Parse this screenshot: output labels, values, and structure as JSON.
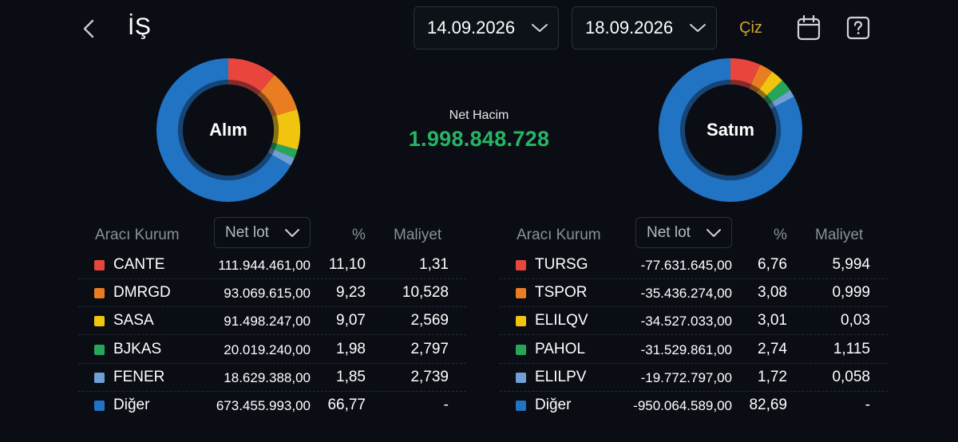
{
  "header": {
    "title": "İŞ",
    "date_start": "14.09.2026",
    "date_end": "18.09.2026",
    "draw_label": "Çiz"
  },
  "summary": {
    "net_volume_label": "Net Hacim",
    "net_volume_value": "1.998.848.728",
    "buy_label": "Alım",
    "sell_label": "Satım"
  },
  "colors": {
    "red": "#e8453c",
    "orange": "#ea7d22",
    "yellow": "#f1c40f",
    "green": "#27a65a",
    "lightblue": "#6f9fd3",
    "blue": "#2173c4",
    "accent_green": "#27b565",
    "accent_gold": "#d4a62a"
  },
  "columns": {
    "broker": "Aracı Kurum",
    "lot_select": "Net lot",
    "pct": "%",
    "cost": "Maliyet"
  },
  "buy_table": [
    {
      "name": "CANTE",
      "lot": "111.944.461,00",
      "pct": "11,10",
      "cost": "1,31",
      "color": "#e8453c"
    },
    {
      "name": "DMRGD",
      "lot": "93.069.615,00",
      "pct": "9,23",
      "cost": "10,528",
      "color": "#ea7d22"
    },
    {
      "name": "SASA",
      "lot": "91.498.247,00",
      "pct": "9,07",
      "cost": "2,569",
      "color": "#f1c40f"
    },
    {
      "name": "BJKAS",
      "lot": "20.019.240,00",
      "pct": "1,98",
      "cost": "2,797",
      "color": "#27a65a"
    },
    {
      "name": "FENER",
      "lot": "18.629.388,00",
      "pct": "1,85",
      "cost": "2,739",
      "color": "#6f9fd3"
    },
    {
      "name": "Diğer",
      "lot": "673.455.993,00",
      "pct": "66,77",
      "cost": "-",
      "color": "#2173c4"
    }
  ],
  "sell_table": [
    {
      "name": "TURSG",
      "lot": "-77.631.645,00",
      "pct": "6,76",
      "cost": "5,994",
      "color": "#e8453c"
    },
    {
      "name": "TSPOR",
      "lot": "-35.436.274,00",
      "pct": "3,08",
      "cost": "0,999",
      "color": "#ea7d22"
    },
    {
      "name": "ELILQV",
      "lot": "-34.527.033,00",
      "pct": "3,01",
      "cost": "0,03",
      "color": "#f1c40f"
    },
    {
      "name": "PAHOL",
      "lot": "-31.529.861,00",
      "pct": "2,74",
      "cost": "1,115",
      "color": "#27a65a"
    },
    {
      "name": "ELILPV",
      "lot": "-19.772.797,00",
      "pct": "1,72",
      "cost": "0,058",
      "color": "#6f9fd3"
    },
    {
      "name": "Diğer",
      "lot": "-950.064.589,00",
      "pct": "82,69",
      "cost": "-",
      "color": "#2173c4"
    }
  ],
  "chart_data": [
    {
      "type": "pie",
      "title": "Alım",
      "categories": [
        "CANTE",
        "DMRGD",
        "SASA",
        "BJKAS",
        "FENER",
        "Diğer"
      ],
      "values": [
        11.1,
        9.23,
        9.07,
        1.98,
        1.85,
        66.77
      ]
    },
    {
      "type": "pie",
      "title": "Satım",
      "categories": [
        "TURSG",
        "TSPOR",
        "ELILQV",
        "PAHOL",
        "ELILPV",
        "Diğer"
      ],
      "values": [
        6.76,
        3.08,
        3.01,
        2.74,
        1.72,
        82.69
      ]
    }
  ]
}
